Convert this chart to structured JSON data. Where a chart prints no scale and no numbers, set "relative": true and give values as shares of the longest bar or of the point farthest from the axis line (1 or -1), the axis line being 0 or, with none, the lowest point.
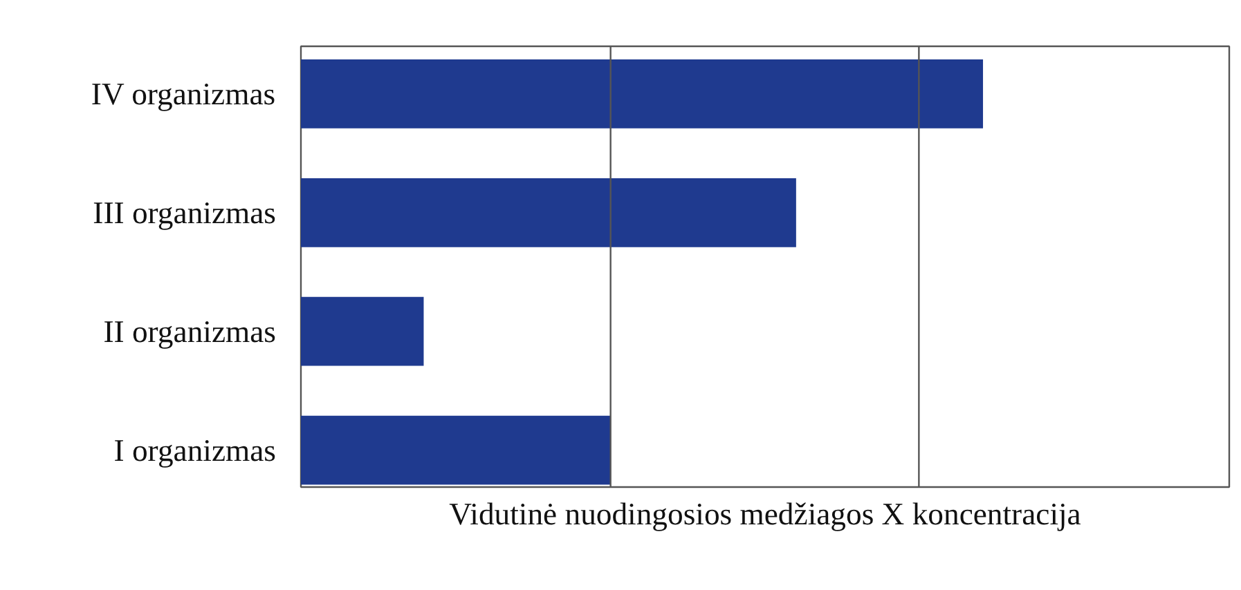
{
  "chart_data": {
    "type": "bar",
    "orientation": "horizontal",
    "relative": true,
    "xlabel": "Vidutinė nuodingosios medžiagos X koncentracija",
    "categories": [
      "IV organizmas",
      "III organizmas",
      "II organizmas",
      "I organizmas"
    ],
    "values": [
      1,
      0.726,
      0.18,
      0.454
    ],
    "color": "#1f3a8f",
    "ref_lines": [
      {
        "axis": "x",
        "value": 0.454,
        "color": "#555555"
      },
      {
        "axis": "x",
        "value": 0.906,
        "color": "#555555"
      }
    ]
  }
}
